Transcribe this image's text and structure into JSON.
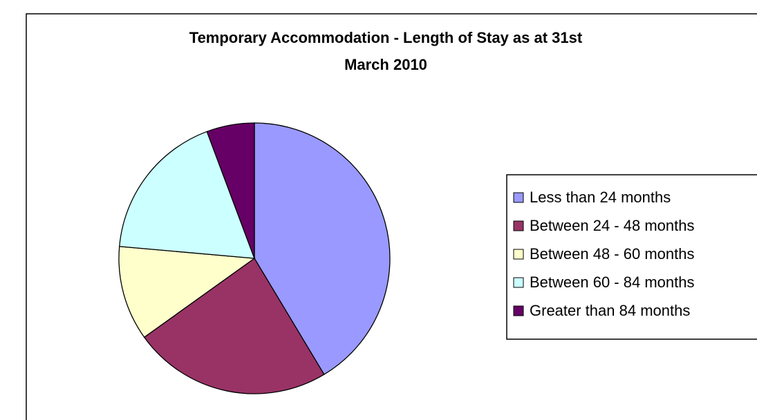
{
  "chart_data": {
    "type": "pie",
    "title": [
      "Temporary Accommodation -  Length of Stay as at 31st",
      "March 2010"
    ],
    "categories": [
      "Less than 24 months",
      "Between 24 - 48 months",
      "Between 48 - 60 months",
      "Between 60 - 84 months",
      "Greater than 84 months"
    ],
    "values": [
      41.4,
      23.7,
      11.3,
      17.9,
      5.7
    ],
    "colors": [
      "#9999ff",
      "#993366",
      "#ffffcc",
      "#ccffff",
      "#660066"
    ],
    "legend": "right"
  }
}
